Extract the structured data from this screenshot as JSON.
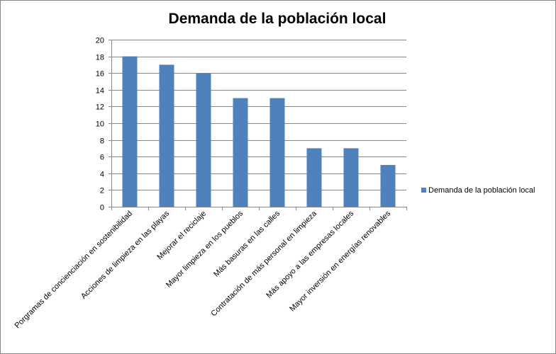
{
  "chart_data": {
    "type": "bar",
    "title": "Demanda de la población local",
    "xlabel": "",
    "ylabel": "",
    "ylim": [
      0,
      20
    ],
    "yticks": [
      0,
      2,
      4,
      6,
      8,
      10,
      12,
      14,
      16,
      18,
      20
    ],
    "grid": true,
    "legend_position": "right",
    "categories": [
      "Porgramas de concienciación en sostenibilidad",
      "Acciones de limpieza en las playas",
      "Mejorar el reciclaje",
      "Mayor limpieza en los pueblos",
      "Más basuras en las calles",
      "Contratación de más personal en limpieza",
      "Más apoyo a las empresas locales",
      "Mayor inversión en energías renovables"
    ],
    "series": [
      {
        "name": "Demanda de la población local",
        "color": "#4f81bd",
        "values": [
          18,
          17,
          16,
          13,
          13,
          7,
          7,
          5
        ]
      }
    ]
  }
}
